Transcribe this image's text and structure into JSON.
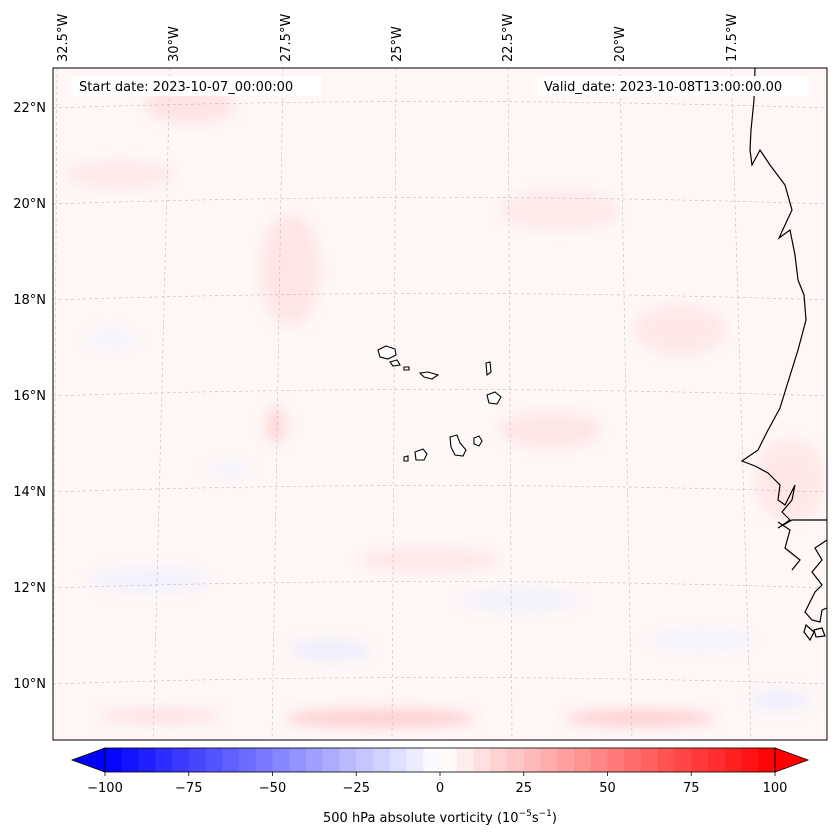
{
  "map": {
    "start_date_text": "Start date: 2023-10-07_00:00:00",
    "valid_date_text": "Valid_date: 2023-10-08T13:00:00.00",
    "lon_labels": [
      "32.5°W",
      "30°W",
      "27.5°W",
      "25°W",
      "22.5°W",
      "20°W",
      "17.5°W"
    ],
    "lat_labels": [
      "22°N",
      "20°N",
      "18°N",
      "16°N",
      "14°N",
      "12°N",
      "10°N"
    ],
    "field_colors": {
      "background": "#fff6f6",
      "light_red": "#ffe4e4",
      "red_band": "#ffd2d2",
      "light_blue": "#eef0ff",
      "coast": "#000000",
      "gridline": "#b8b8b8"
    }
  },
  "colorbar": {
    "label": "500 hPa absolute vorticity (10",
    "label_exp1": "−5",
    "label_mid": "s",
    "label_exp2": "−1",
    "label_end": ")",
    "tick_labels": [
      "−100",
      "−75",
      "−50",
      "−25",
      "0",
      "25",
      "50",
      "75",
      "100"
    ],
    "min": -100,
    "max": 100,
    "step": 5,
    "extend": "both",
    "colormap": "bwr"
  }
}
